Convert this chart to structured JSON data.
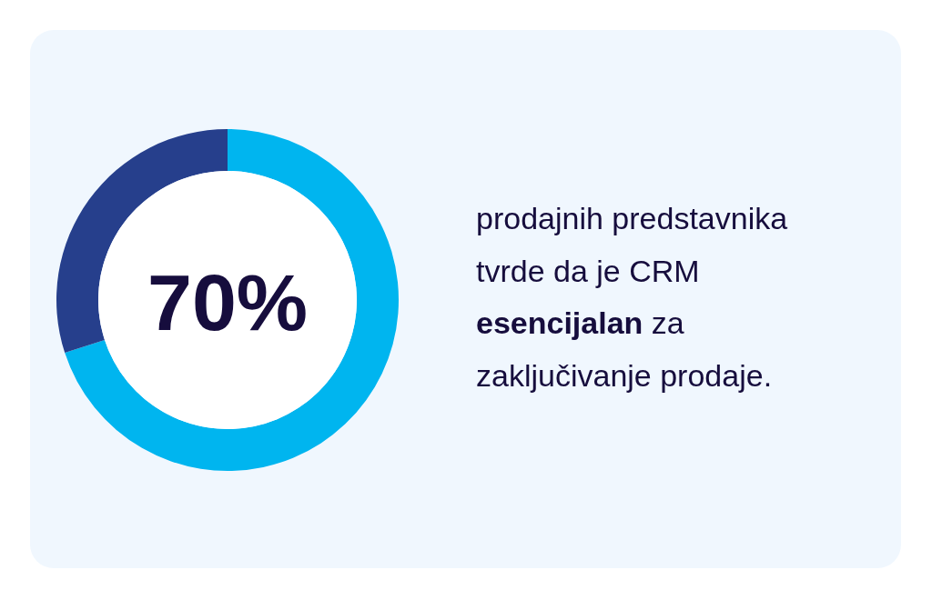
{
  "chart_data": {
    "type": "donut",
    "categories": [
      null,
      null
    ],
    "values": [
      70,
      30
    ],
    "colors": [
      "#00b5ef",
      "#263f8c"
    ],
    "value_labels": [
      "70%",
      null
    ],
    "annotations": [
      "prodajnih predstavnika tvrde da je CRM",
      "esencijalan",
      "za zaključivanje prodaje."
    ]
  }
}
